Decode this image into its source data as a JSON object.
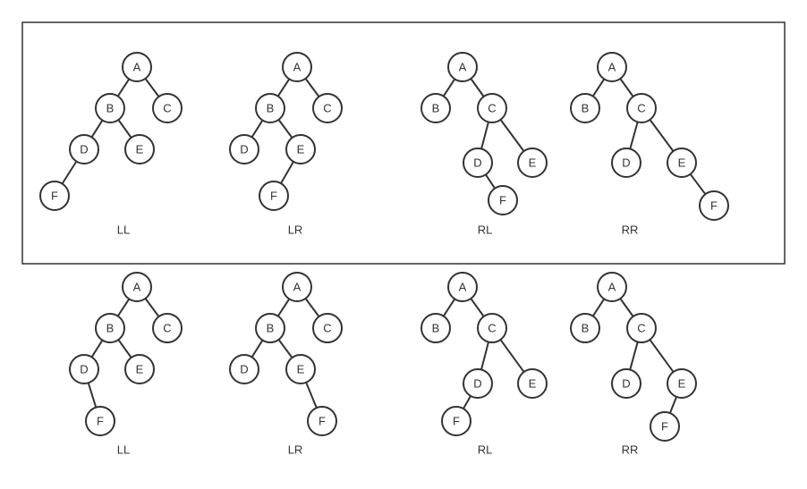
{
  "diagrams": [
    {
      "caption": "LL",
      "nodes": [
        {
          "label": "A"
        },
        {
          "label": "B"
        },
        {
          "label": "C"
        },
        {
          "label": "D"
        },
        {
          "label": "E"
        },
        {
          "label": "F"
        }
      ],
      "edges": [
        [
          "A",
          "B"
        ],
        [
          "A",
          "C"
        ],
        [
          "B",
          "D"
        ],
        [
          "B",
          "E"
        ],
        [
          "D",
          "F"
        ]
      ]
    },
    {
      "caption": "LR",
      "nodes": [
        {
          "label": "A"
        },
        {
          "label": "B"
        },
        {
          "label": "C"
        },
        {
          "label": "D"
        },
        {
          "label": "E"
        },
        {
          "label": "F"
        }
      ],
      "edges": [
        [
          "A",
          "B"
        ],
        [
          "A",
          "C"
        ],
        [
          "B",
          "D"
        ],
        [
          "B",
          "E"
        ],
        [
          "E",
          "F"
        ]
      ]
    },
    {
      "caption": "RL",
      "nodes": [
        {
          "label": "A"
        },
        {
          "label": "B"
        },
        {
          "label": "C"
        },
        {
          "label": "D"
        },
        {
          "label": "E"
        },
        {
          "label": "F"
        }
      ],
      "edges": [
        [
          "A",
          "B"
        ],
        [
          "A",
          "C"
        ],
        [
          "C",
          "D"
        ],
        [
          "C",
          "E"
        ],
        [
          "D",
          "F"
        ]
      ]
    },
    {
      "caption": "RR",
      "nodes": [
        {
          "label": "A"
        },
        {
          "label": "B"
        },
        {
          "label": "C"
        },
        {
          "label": "D"
        },
        {
          "label": "E"
        },
        {
          "label": "F"
        }
      ],
      "edges": [
        [
          "A",
          "B"
        ],
        [
          "A",
          "C"
        ],
        [
          "C",
          "D"
        ],
        [
          "C",
          "E"
        ],
        [
          "E",
          "F"
        ]
      ]
    },
    {
      "caption": "LL",
      "nodes": [
        {
          "label": "A"
        },
        {
          "label": "B"
        },
        {
          "label": "C"
        },
        {
          "label": "D"
        },
        {
          "label": "E"
        },
        {
          "label": "F"
        }
      ],
      "edges": [
        [
          "A",
          "B"
        ],
        [
          "A",
          "C"
        ],
        [
          "B",
          "D"
        ],
        [
          "B",
          "E"
        ],
        [
          "D",
          "F"
        ]
      ]
    },
    {
      "caption": "LR",
      "nodes": [
        {
          "label": "A"
        },
        {
          "label": "B"
        },
        {
          "label": "C"
        },
        {
          "label": "D"
        },
        {
          "label": "E"
        },
        {
          "label": "F"
        }
      ],
      "edges": [
        [
          "A",
          "B"
        ],
        [
          "A",
          "C"
        ],
        [
          "B",
          "D"
        ],
        [
          "B",
          "E"
        ],
        [
          "E",
          "F"
        ]
      ]
    },
    {
      "caption": "RL",
      "nodes": [
        {
          "label": "A"
        },
        {
          "label": "B"
        },
        {
          "label": "C"
        },
        {
          "label": "D"
        },
        {
          "label": "E"
        },
        {
          "label": "F"
        }
      ],
      "edges": [
        [
          "A",
          "B"
        ],
        [
          "A",
          "C"
        ],
        [
          "C",
          "D"
        ],
        [
          "C",
          "E"
        ],
        [
          "D",
          "F"
        ]
      ]
    },
    {
      "caption": "RR",
      "nodes": [
        {
          "label": "A"
        },
        {
          "label": "B"
        },
        {
          "label": "C"
        },
        {
          "label": "D"
        },
        {
          "label": "E"
        },
        {
          "label": "F"
        }
      ],
      "edges": [
        [
          "A",
          "B"
        ],
        [
          "A",
          "C"
        ],
        [
          "C",
          "D"
        ],
        [
          "C",
          "E"
        ],
        [
          "E",
          "F"
        ]
      ]
    }
  ]
}
